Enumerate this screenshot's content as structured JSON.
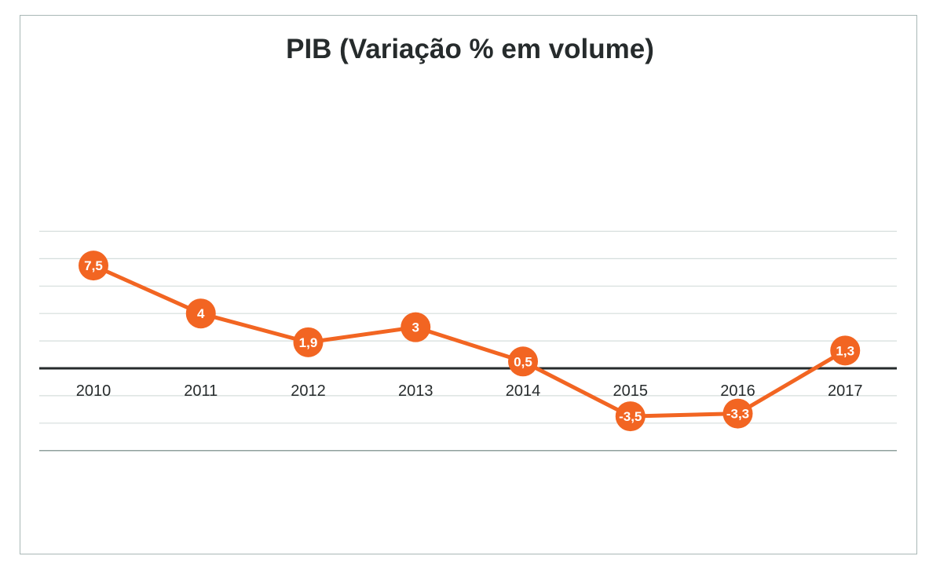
{
  "chart_data": {
    "type": "line",
    "title": "PIB (Variação % em volume)",
    "xlabel": "",
    "ylabel": "",
    "categories": [
      "2010",
      "2011",
      "2012",
      "2013",
      "2014",
      "2015",
      "2016",
      "2017"
    ],
    "series": [
      {
        "values": [
          7.5,
          4,
          1.9,
          3,
          0.5,
          -3.5,
          -3.3,
          1.3
        ],
        "labels": [
          "7,5",
          "4",
          "1,9",
          "3",
          "0,5",
          "-3,5",
          "-3,3",
          "1,3"
        ]
      }
    ],
    "ylim": [
      -6,
      10
    ],
    "grid": true,
    "legend": "none",
    "colors": {
      "line": "#f26522",
      "marker": "#f26522",
      "grid": "#d5dedc",
      "zero_axis": "#262b2c",
      "label_text": "#ffffff"
    }
  }
}
